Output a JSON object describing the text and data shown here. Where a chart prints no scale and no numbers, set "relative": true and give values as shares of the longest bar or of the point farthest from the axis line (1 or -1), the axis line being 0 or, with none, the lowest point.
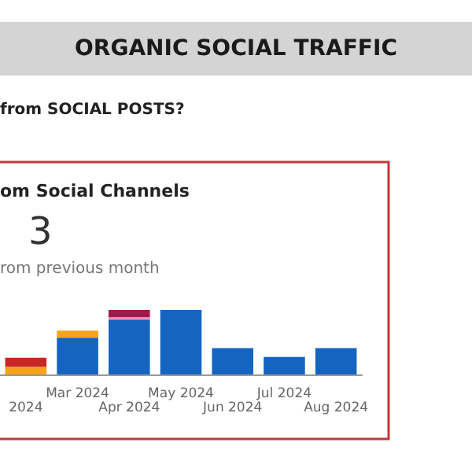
{
  "chart_data": {
    "type": "bar",
    "title": "ORGANIC SOCIAL TRAFFIC",
    "subtitle": "from SOCIAL POSTS?",
    "annotations": [
      "om Social Channels",
      "3",
      "rom previous month"
    ],
    "categories": [
      "2024",
      "Mar 2024",
      "Apr 2024",
      "May 2024",
      "Jun 2024",
      "Jul 2024",
      "Aug 2024"
    ],
    "stacked": true,
    "relative": true,
    "grid": false,
    "series": [
      {
        "color": "#1565c0",
        "values": [
          0,
          0.57,
          0.85,
          1.0,
          0.41,
          0.27,
          0.41
        ]
      },
      {
        "color": "#f5a31a",
        "values": [
          0.12,
          0.11,
          0,
          0,
          0,
          0,
          0
        ]
      },
      {
        "color": "#e58fb4",
        "values": [
          0,
          0,
          0.04,
          0,
          0,
          0,
          0
        ]
      },
      {
        "color": "#a3174a",
        "values": [
          0,
          0,
          0.11,
          0,
          0,
          0,
          0
        ]
      },
      {
        "color": "#c62828",
        "values": [
          0.14,
          0,
          0,
          0,
          0,
          0,
          0
        ]
      }
    ]
  }
}
